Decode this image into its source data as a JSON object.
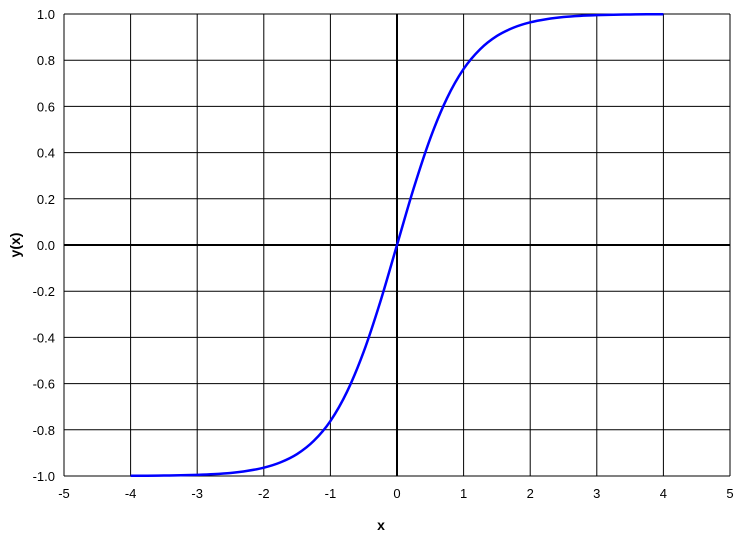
{
  "chart_data": {
    "type": "line",
    "title": "",
    "xlabel": "x",
    "ylabel": "y(x)",
    "xlim": [
      -5,
      5
    ],
    "ylim": [
      -1.0,
      1.0
    ],
    "grid": true,
    "legend": "none",
    "x_ticks": [
      "-5",
      "-4",
      "-3",
      "-2",
      "-1",
      "0",
      "1",
      "2",
      "3",
      "4",
      "5"
    ],
    "y_ticks": [
      "-1.0",
      "-0.8",
      "-0.6",
      "-0.4",
      "-0.2",
      "0.0",
      "0.2",
      "0.4",
      "0.6",
      "0.8",
      "1.0"
    ],
    "series": [
      {
        "color": "#0000ff",
        "x": [
          -4,
          -3.75,
          -3.5,
          -3.25,
          -3,
          -2.75,
          -2.5,
          -2.25,
          -2,
          -1.75,
          -1.5,
          -1.25,
          -1,
          -0.75,
          -0.5,
          -0.25,
          0,
          0.25,
          0.5,
          0.75,
          1,
          1.25,
          1.5,
          1.75,
          2,
          2.25,
          2.5,
          2.75,
          3,
          3.25,
          3.5,
          3.75,
          4
        ],
        "y": [
          -0.999,
          -0.999,
          -0.998,
          -0.997,
          -0.995,
          -0.992,
          -0.987,
          -0.978,
          -0.964,
          -0.941,
          -0.905,
          -0.848,
          -0.762,
          -0.635,
          -0.462,
          -0.245,
          0,
          0.245,
          0.462,
          0.635,
          0.762,
          0.848,
          0.905,
          0.941,
          0.964,
          0.978,
          0.987,
          0.992,
          0.995,
          0.997,
          0.998,
          0.999,
          0.999
        ]
      }
    ]
  }
}
